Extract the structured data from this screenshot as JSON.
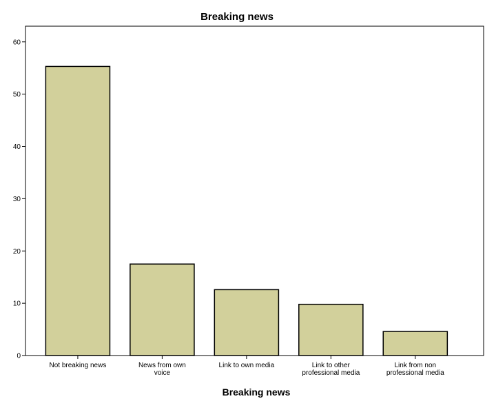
{
  "chart_data": {
    "type": "bar",
    "title": "Breaking news",
    "xlabel": "Breaking news",
    "ylabel": "",
    "categories": [
      [
        "Not breaking news"
      ],
      [
        "News from own",
        "voice"
      ],
      [
        "Link to own media"
      ],
      [
        "Link to other",
        "professional media"
      ],
      [
        "Link from non",
        "professional media"
      ]
    ],
    "values": [
      55.3,
      17.5,
      12.6,
      9.8,
      4.6
    ],
    "ylim": [
      0,
      63
    ],
    "yticks": [
      0,
      10,
      20,
      30,
      40,
      50,
      60
    ],
    "grid": false,
    "legend": "none",
    "bar_color": "#d2d09b",
    "border_color": "#000000"
  }
}
